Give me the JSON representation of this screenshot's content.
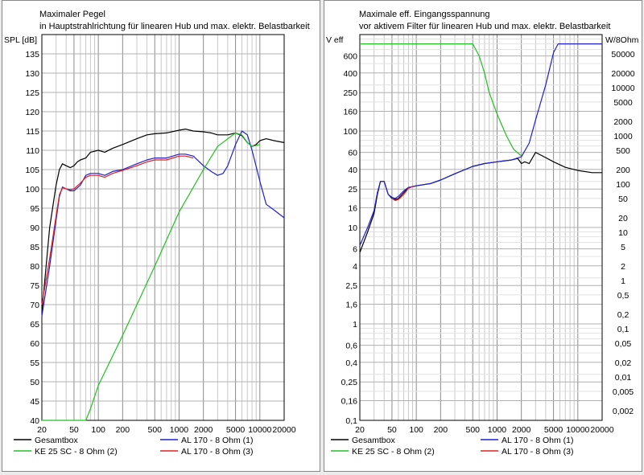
{
  "chart_data": [
    {
      "type": "line",
      "title": "Maximaler Pegel",
      "subtitle": "in Hauptstrahlrichtung für linearen Hub und max. elektr. Belastbarkeit",
      "xscale": "log",
      "xlim": [
        20,
        20000
      ],
      "xticks": [
        20,
        50,
        100,
        200,
        500,
        1000,
        2000,
        5000,
        10000,
        20000
      ],
      "xtick_labels": [
        "20",
        "50",
        "100",
        "200",
        "500",
        "1000",
        "2000",
        "5000",
        "10000",
        "20000"
      ],
      "ylabel": "SPL [dB]",
      "ylim": [
        40,
        140
      ],
      "yticks": [
        40,
        45,
        50,
        55,
        60,
        65,
        70,
        75,
        80,
        85,
        90,
        95,
        100,
        105,
        110,
        115,
        120,
        125,
        130,
        135
      ],
      "ytick_labels": [
        "40",
        "45",
        "50",
        "55",
        "60",
        "65",
        "70",
        "75",
        "80",
        "85",
        "90",
        "95",
        "100",
        "105",
        "110",
        "115",
        "120",
        "125",
        "130",
        "135"
      ],
      "grid": true,
      "legend": [
        {
          "label": "Gesamtbox",
          "color": "#000000"
        },
        {
          "label": "AL 170 - 8 Ohm (1)",
          "color": "#1f1fd0"
        },
        {
          "label": "KE 25 SC - 8 Ohm    (2)",
          "color": "#22c022"
        },
        {
          "label": "AL 170 - 8 Ohm (3)",
          "color": "#e02020"
        }
      ],
      "series": [
        {
          "name": "Gesamtbox",
          "color": "#000000",
          "points": [
            [
              20,
              68
            ],
            [
              25,
              90
            ],
            [
              30,
              101
            ],
            [
              33,
              105
            ],
            [
              36,
              106.5
            ],
            [
              40,
              106
            ],
            [
              45,
              105.5
            ],
            [
              50,
              106
            ],
            [
              55,
              107
            ],
            [
              60,
              107.5
            ],
            [
              70,
              108
            ],
            [
              80,
              109.5
            ],
            [
              100,
              110
            ],
            [
              120,
              109.5
            ],
            [
              150,
              110.5
            ],
            [
              200,
              111.5
            ],
            [
              300,
              113
            ],
            [
              400,
              114
            ],
            [
              500,
              114.3
            ],
            [
              700,
              114.5
            ],
            [
              1000,
              115.2
            ],
            [
              1200,
              115.5
            ],
            [
              1500,
              115
            ],
            [
              2000,
              114.8
            ],
            [
              2500,
              114.5
            ],
            [
              3000,
              114
            ],
            [
              4000,
              114
            ],
            [
              5000,
              114.5
            ],
            [
              6000,
              113.8
            ],
            [
              7000,
              112
            ],
            [
              8000,
              111
            ],
            [
              9000,
              111.5
            ],
            [
              10000,
              112.5
            ],
            [
              12000,
              113
            ],
            [
              15000,
              112.5
            ],
            [
              20000,
              112
            ]
          ]
        },
        {
          "name": "AL 170 - 8 Ohm (1)",
          "color": "#1f1fd0",
          "points": [
            [
              20,
              67
            ],
            [
              25,
              80
            ],
            [
              30,
              92
            ],
            [
              33,
              98
            ],
            [
              36,
              100.5
            ],
            [
              40,
              100
            ],
            [
              45,
              99.5
            ],
            [
              50,
              99.5
            ],
            [
              60,
              101
            ],
            [
              70,
              103.5
            ],
            [
              80,
              104
            ],
            [
              100,
              104
            ],
            [
              120,
              103.5
            ],
            [
              150,
              104.5
            ],
            [
              200,
              105
            ],
            [
              300,
              106.5
            ],
            [
              400,
              107.5
            ],
            [
              500,
              108
            ],
            [
              700,
              108
            ],
            [
              1000,
              109
            ],
            [
              1200,
              109
            ],
            [
              1500,
              108.5
            ],
            [
              2000,
              106
            ],
            [
              2500,
              104.5
            ],
            [
              3000,
              103.5
            ],
            [
              3500,
              104
            ],
            [
              4000,
              106
            ],
            [
              5000,
              111.5
            ],
            [
              6000,
              115
            ],
            [
              7000,
              114
            ],
            [
              8000,
              110
            ],
            [
              10000,
              102
            ],
            [
              12000,
              96
            ],
            [
              15000,
              94.5
            ],
            [
              20000,
              92.5
            ]
          ]
        },
        {
          "name": "KE 25 SC - 8 Ohm    (2)",
          "color": "#22c022",
          "points": [
            [
              20,
              40
            ],
            [
              50,
              40
            ],
            [
              70,
              40
            ],
            [
              80,
              43
            ],
            [
              100,
              49
            ],
            [
              200,
              62
            ],
            [
              500,
              80
            ],
            [
              1000,
              94
            ],
            [
              2000,
              105
            ],
            [
              3000,
              111
            ],
            [
              5000,
              114.5
            ],
            [
              6000,
              114
            ],
            [
              7000,
              112
            ],
            [
              8000,
              111
            ],
            [
              10000,
              111.5
            ]
          ]
        },
        {
          "name": "AL 170 - 8 Ohm (3)",
          "color": "#e02020",
          "points": [
            [
              20,
              70
            ],
            [
              25,
              82
            ],
            [
              30,
              93
            ],
            [
              33,
              98.5
            ],
            [
              36,
              100.3
            ],
            [
              40,
              100
            ],
            [
              45,
              99.8
            ],
            [
              50,
              100
            ],
            [
              60,
              101.5
            ],
            [
              70,
              103
            ],
            [
              80,
              103.5
            ],
            [
              100,
              103.5
            ],
            [
              120,
              103
            ],
            [
              150,
              104
            ],
            [
              200,
              104.8
            ],
            [
              300,
              106
            ],
            [
              400,
              107
            ],
            [
              500,
              107.5
            ],
            [
              700,
              107.5
            ],
            [
              1000,
              108.5
            ],
            [
              1200,
              108.5
            ],
            [
              1500,
              108
            ]
          ]
        }
      ]
    },
    {
      "type": "line",
      "title": "Maximale eff. Eingangsspannung",
      "subtitle": "vor aktivem Filter für linearen Hub und max. elektr. Belastbarkeit",
      "xscale": "log",
      "xlim": [
        20,
        20000
      ],
      "xticks": [
        20,
        50,
        100,
        200,
        500,
        1000,
        2000,
        5000,
        10000,
        20000
      ],
      "xtick_labels": [
        "20",
        "50",
        "100",
        "200",
        "500",
        "1000",
        "2000",
        "5000",
        "10000",
        "20000"
      ],
      "ylabel": "V eff",
      "y2label": "W/8Ohm",
      "yscale": "log",
      "ylim": [
        0.1,
        1000
      ],
      "yticks": [
        0.1,
        0.16,
        0.25,
        0.4,
        0.6,
        1,
        1.6,
        2.5,
        4,
        6,
        10,
        16,
        25,
        40,
        60,
        100,
        160,
        250,
        400,
        600
      ],
      "ytick_labels": [
        "0,1",
        "0,16",
        "0,25",
        "0,4",
        "0,6",
        "1",
        "1,6",
        "2,5",
        "4",
        "6",
        "10",
        "16",
        "25",
        "40",
        "60",
        "100",
        "160",
        "250",
        "400",
        "600"
      ],
      "y2ticks": [
        0.002,
        0.005,
        0.01,
        0.02,
        0.05,
        0.1,
        0.2,
        0.5,
        1,
        2,
        5,
        10,
        20,
        50,
        100,
        200,
        500,
        1000,
        2000,
        5000,
        10000,
        20000,
        50000
      ],
      "y2tick_labels": [
        "0,002",
        "0,005",
        "0,01",
        "0,02",
        "0,05",
        "0,1",
        "0,2",
        "0,5",
        "1",
        "2",
        "5",
        "10",
        "20",
        "50",
        "100",
        "200",
        "500",
        "1000",
        "2000",
        "5000",
        "10000",
        "20000",
        "50000"
      ],
      "grid": true,
      "legend": [
        {
          "label": "Gesamtbox",
          "color": "#000000"
        },
        {
          "label": "AL 170 - 8 Ohm (1)",
          "color": "#1f1fd0"
        },
        {
          "label": "KE 25 SC - 8 Ohm    (2)",
          "color": "#22c022"
        },
        {
          "label": "AL 170 - 8 Ohm (3)",
          "color": "#e02020"
        }
      ],
      "series": [
        {
          "name": "Gesamtbox",
          "color": "#000000",
          "points": [
            [
              20,
              5.5
            ],
            [
              25,
              9
            ],
            [
              30,
              14
            ],
            [
              33,
              22
            ],
            [
              36,
              30
            ],
            [
              40,
              30
            ],
            [
              45,
              22
            ],
            [
              50,
              20
            ],
            [
              55,
              19.5
            ],
            [
              60,
              20
            ],
            [
              70,
              23
            ],
            [
              80,
              26
            ],
            [
              100,
              27
            ],
            [
              150,
              28.5
            ],
            [
              200,
              31
            ],
            [
              300,
              36
            ],
            [
              500,
              43
            ],
            [
              700,
              46
            ],
            [
              1000,
              48
            ],
            [
              1500,
              50
            ],
            [
              1800,
              52
            ],
            [
              2000,
              46
            ],
            [
              2200,
              48
            ],
            [
              2500,
              46
            ],
            [
              3000,
              60
            ],
            [
              4000,
              53
            ],
            [
              5000,
              48
            ],
            [
              7000,
              42
            ],
            [
              10000,
              39
            ],
            [
              15000,
              37
            ],
            [
              20000,
              37
            ]
          ]
        },
        {
          "name": "AL 170 - 8 Ohm (1)",
          "color": "#1f1fd0",
          "points": [
            [
              20,
              6.5
            ],
            [
              25,
              10
            ],
            [
              30,
              15
            ],
            [
              33,
              23
            ],
            [
              36,
              30
            ],
            [
              40,
              30
            ],
            [
              45,
              22
            ],
            [
              50,
              20.5
            ],
            [
              55,
              20
            ],
            [
              60,
              21
            ],
            [
              70,
              24
            ],
            [
              80,
              26
            ],
            [
              100,
              27
            ],
            [
              150,
              28.5
            ],
            [
              200,
              31
            ],
            [
              300,
              36
            ],
            [
              500,
              43
            ],
            [
              700,
              46
            ],
            [
              1000,
              48
            ],
            [
              1500,
              50
            ],
            [
              2000,
              54
            ],
            [
              2500,
              75
            ],
            [
              3000,
              130
            ],
            [
              4000,
              300
            ],
            [
              5000,
              650
            ],
            [
              5700,
              800
            ],
            [
              7000,
              800
            ],
            [
              10000,
              800
            ],
            [
              20000,
              800
            ]
          ]
        },
        {
          "name": "KE 25 SC - 8 Ohm    (2)",
          "color": "#22c022",
          "points": [
            [
              20,
              800
            ],
            [
              100,
              800
            ],
            [
              300,
              800
            ],
            [
              500,
              800
            ],
            [
              600,
              600
            ],
            [
              700,
              400
            ],
            [
              800,
              250
            ],
            [
              1000,
              150
            ],
            [
              1300,
              90
            ],
            [
              1600,
              65
            ],
            [
              2000,
              55
            ]
          ]
        },
        {
          "name": "AL 170 - 8 Ohm (3)",
          "color": "#e02020",
          "points": [
            [
              50,
              20
            ],
            [
              55,
              19
            ],
            [
              60,
              19.5
            ],
            [
              70,
              22
            ],
            [
              80,
              25.5
            ],
            [
              90,
              26.5
            ]
          ]
        }
      ]
    }
  ]
}
